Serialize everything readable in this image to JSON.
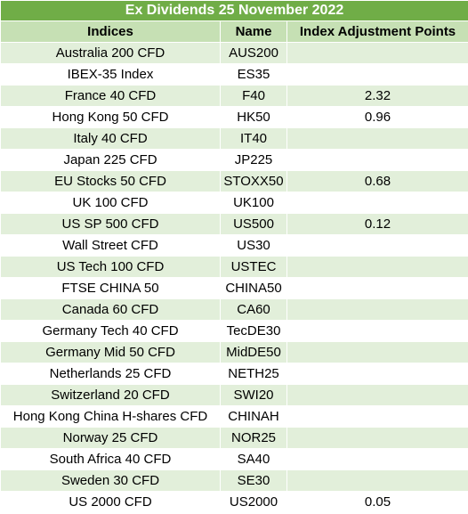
{
  "title": "Ex Dividends 25 November 2022",
  "columns": [
    "Indices",
    "Name",
    "Index Adjustment Points"
  ],
  "rows": [
    {
      "index": "Australia 200 CFD",
      "name": "AUS200",
      "points": ""
    },
    {
      "index": "IBEX-35 Index",
      "name": "ES35",
      "points": ""
    },
    {
      "index": "France 40 CFD",
      "name": "F40",
      "points": "2.32"
    },
    {
      "index": "Hong Kong 50 CFD",
      "name": "HK50",
      "points": "0.96"
    },
    {
      "index": "Italy 40 CFD",
      "name": "IT40",
      "points": ""
    },
    {
      "index": "Japan 225 CFD",
      "name": "JP225",
      "points": ""
    },
    {
      "index": "EU Stocks 50 CFD",
      "name": "STOXX50",
      "points": "0.68"
    },
    {
      "index": "UK 100 CFD",
      "name": "UK100",
      "points": ""
    },
    {
      "index": "US SP 500 CFD",
      "name": "US500",
      "points": "0.12"
    },
    {
      "index": "Wall Street CFD",
      "name": "US30",
      "points": ""
    },
    {
      "index": "US Tech 100 CFD",
      "name": "USTEC",
      "points": ""
    },
    {
      "index": "FTSE CHINA 50",
      "name": "CHINA50",
      "points": ""
    },
    {
      "index": "Canada 60 CFD",
      "name": "CA60",
      "points": ""
    },
    {
      "index": "Germany Tech 40 CFD",
      "name": "TecDE30",
      "points": ""
    },
    {
      "index": "Germany Mid 50 CFD",
      "name": "MidDE50",
      "points": ""
    },
    {
      "index": "Netherlands 25 CFD",
      "name": "NETH25",
      "points": ""
    },
    {
      "index": "Switzerland 20 CFD",
      "name": "SWI20",
      "points": ""
    },
    {
      "index": "Hong Kong China H-shares CFD",
      "name": "CHINAH",
      "points": ""
    },
    {
      "index": "Norway 25 CFD",
      "name": "NOR25",
      "points": ""
    },
    {
      "index": "South Africa 40 CFD",
      "name": "SA40",
      "points": ""
    },
    {
      "index": "Sweden 30 CFD",
      "name": "SE30",
      "points": ""
    },
    {
      "index": "US 2000 CFD",
      "name": "US2000",
      "points": "0.05"
    }
  ],
  "colors": {
    "title_bg": "#70ad47",
    "header_bg": "#c6e0b4",
    "band_bg": "#e2efda",
    "title_text": "#ffffff"
  }
}
